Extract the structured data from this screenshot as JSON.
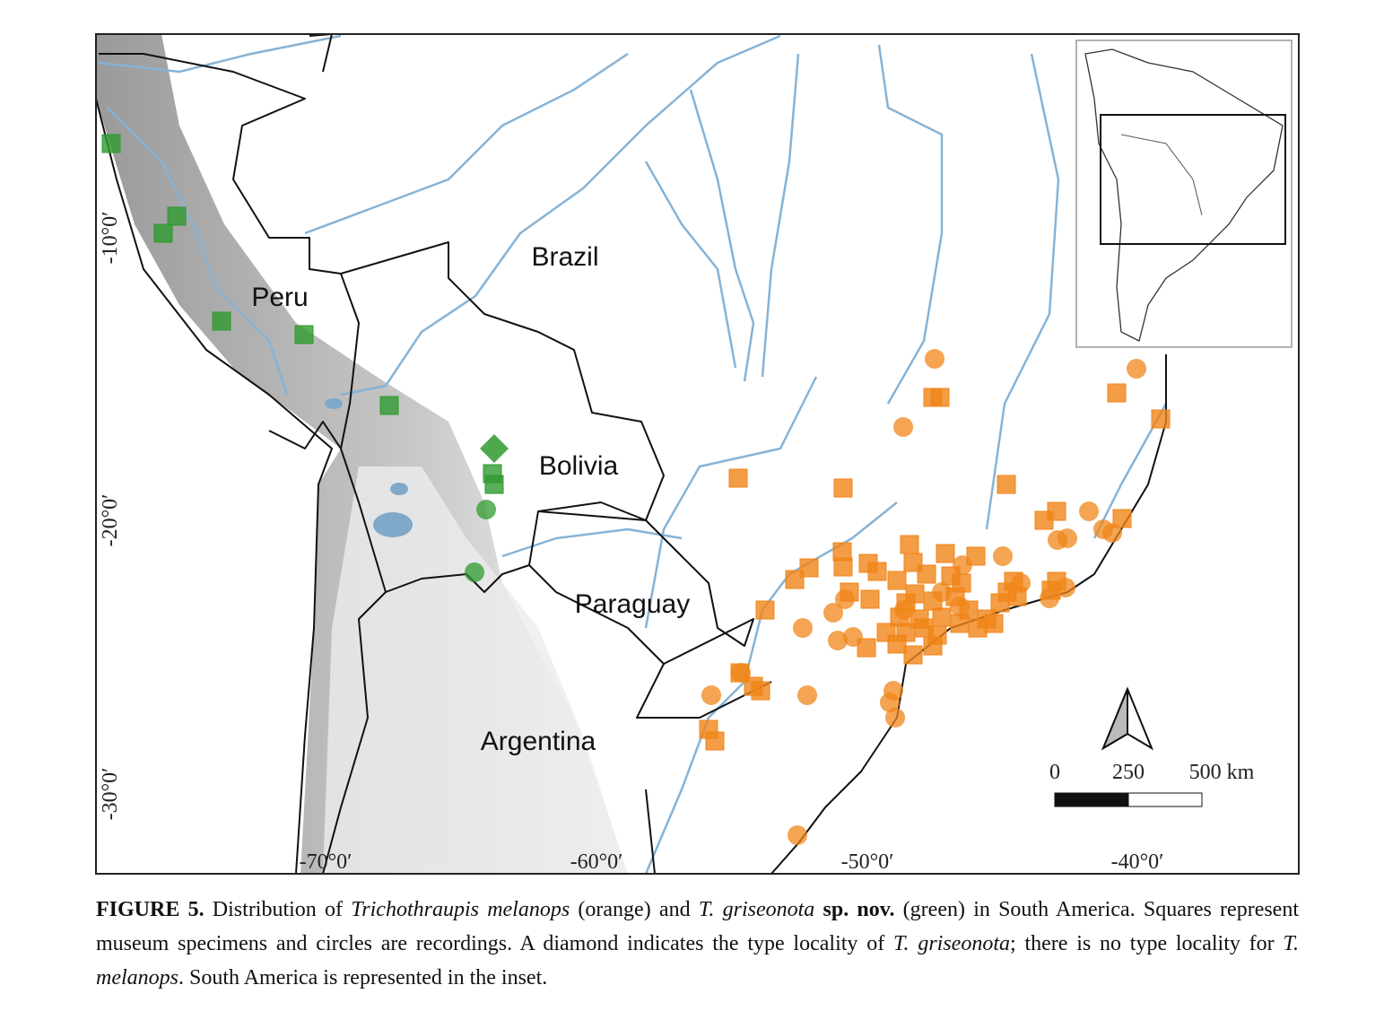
{
  "map": {
    "countries": [
      "Brazil",
      "Peru",
      "Bolivia",
      "Paraguay",
      "Argentina"
    ],
    "longitude_labels": [
      "-70°0′",
      "-60°0′",
      "-50°0′",
      "-40°0′"
    ],
    "latitude_labels": [
      "-10°0′",
      "-20°0′",
      "-30°0′"
    ],
    "scale_bar": [
      "0",
      "250",
      "500 km"
    ]
  },
  "caption": {
    "segments": [
      {
        "text": "FIGURE 5.",
        "style": "bold"
      },
      {
        "text": " Distribution of ",
        "style": "normal"
      },
      {
        "text": "Trichothraupis melanops",
        "style": "italic"
      },
      {
        "text": " (orange) and ",
        "style": "normal"
      },
      {
        "text": "T. griseonota",
        "style": "italic"
      },
      {
        "text": " sp. nov.",
        "style": "bold"
      },
      {
        "text": " (green) in South America. Squares represent museum specimens and circles are recordings. A diamond indicates the type locality of ",
        "style": "normal"
      },
      {
        "text": "T. griseonota",
        "style": "italic"
      },
      {
        "text": "; there is no type locality for ",
        "style": "normal"
      },
      {
        "text": "T. melanops",
        "style": "italic"
      },
      {
        "text": ". South America is represented in the inset.",
        "style": "normal"
      }
    ]
  }
}
